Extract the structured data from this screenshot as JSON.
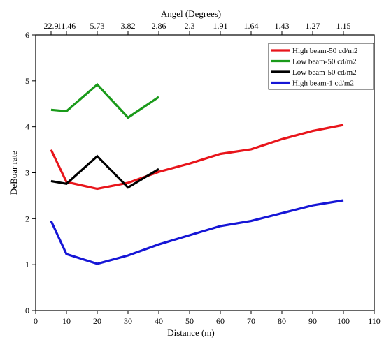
{
  "chart_data": {
    "type": "line",
    "xlabel": "Distance (m)",
    "ylabel": "DeBoar rate",
    "top_axis_label": "Angel (Degrees)",
    "xlim": [
      0,
      110
    ],
    "ylim": [
      0,
      6
    ],
    "x_ticks": [
      "0",
      "10",
      "20",
      "30",
      "40",
      "50",
      "60",
      "70",
      "80",
      "90",
      "100",
      "110"
    ],
    "y_ticks": [
      "0",
      "1",
      "2",
      "3",
      "4",
      "5",
      "6"
    ],
    "top_ticks": [
      {
        "x": 5,
        "label": "22.9"
      },
      {
        "x": 10,
        "label": "11.46"
      },
      {
        "x": 20,
        "label": "5.73"
      },
      {
        "x": 30,
        "label": "3.82"
      },
      {
        "x": 40,
        "label": "2.86"
      },
      {
        "x": 50,
        "label": "2.3"
      },
      {
        "x": 60,
        "label": "1.91"
      },
      {
        "x": 70,
        "label": "1.64"
      },
      {
        "x": 80,
        "label": "1.43"
      },
      {
        "x": 90,
        "label": "1.27"
      },
      {
        "x": 100,
        "label": "1.15"
      }
    ],
    "grid": false,
    "legend_position": "top-right",
    "series": [
      {
        "name": "High beam-50 cd/m2",
        "color": "#e8151b",
        "x": [
          5,
          10,
          20,
          30,
          40,
          50,
          60,
          70,
          80,
          90,
          100
        ],
        "y": [
          3.5,
          2.8,
          2.65,
          2.78,
          3.02,
          3.2,
          3.41,
          3.51,
          3.73,
          3.91,
          4.04
        ]
      },
      {
        "name": "Low beam-50 cd/m2",
        "color": "#1a9a1a",
        "x": [
          5,
          10,
          20,
          30,
          40
        ],
        "y": [
          4.37,
          4.34,
          4.92,
          4.2,
          4.65
        ]
      },
      {
        "name": "Low beam-50 cd/m2",
        "color": "#000000",
        "x": [
          5,
          10,
          20,
          30,
          40
        ],
        "y": [
          2.82,
          2.76,
          3.36,
          2.68,
          3.08
        ]
      },
      {
        "name": "High beam-1 cd/m2",
        "color": "#1616d6",
        "x": [
          5,
          10,
          20,
          30,
          40,
          50,
          60,
          70,
          80,
          90,
          100
        ],
        "y": [
          1.95,
          1.23,
          1.02,
          1.2,
          1.44,
          1.64,
          1.84,
          1.95,
          2.12,
          2.29,
          2.4
        ]
      }
    ]
  }
}
